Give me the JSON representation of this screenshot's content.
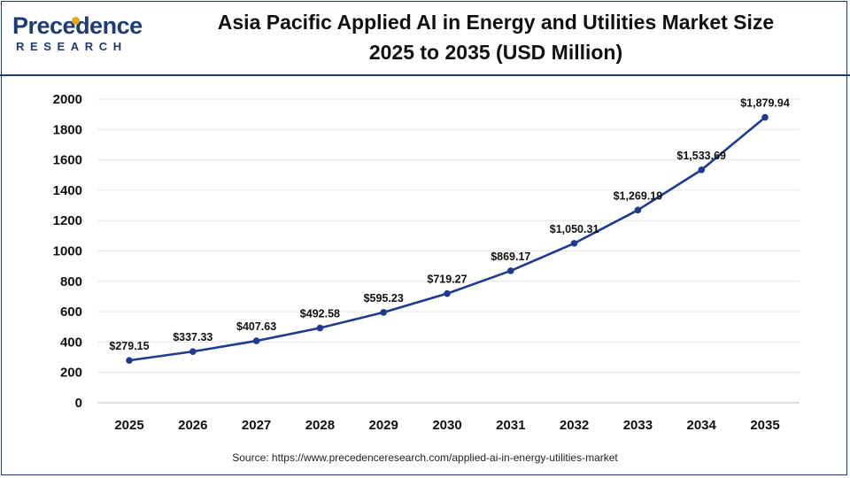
{
  "logo": {
    "word": "Precedence",
    "sub": "RESEARCH"
  },
  "chart_data": {
    "type": "line",
    "title": "Asia Pacific Applied AI in Energy and Utilities Market Size",
    "subtitle": "2025 to 2035 (USD Million)",
    "xlabel": "",
    "ylabel": "",
    "x": [
      "2025",
      "2026",
      "2027",
      "2028",
      "2029",
      "2030",
      "2031",
      "2032",
      "2033",
      "2034",
      "2035"
    ],
    "series": [
      {
        "values": [
          279.15,
          337.33,
          407.63,
          492.58,
          595.23,
          719.27,
          869.17,
          1050.31,
          1269.19,
          1533.69,
          1879.94
        ],
        "labels": [
          "$279.15",
          "$337.33",
          "$407.63",
          "$492.58",
          "$595.23",
          "$719.27",
          "$869.17",
          "$1,050.31",
          "$1,269.19",
          "$1,533.69",
          "$1,879.94"
        ],
        "color": "#1f3b8f"
      }
    ],
    "yticks": [
      "0",
      "200",
      "400",
      "600",
      "800",
      "1000",
      "1200",
      "1400",
      "1600",
      "1800",
      "2000"
    ],
    "ylim": [
      0,
      2000
    ],
    "grid": true,
    "legend": "none"
  },
  "source": "Source: https://www.precedenceresearch.com/applied-ai-in-energy-utilities-market",
  "colors": {
    "brand": "#1f3b73",
    "accent": "#e8a317",
    "line": "#1f3b8f",
    "grid": "#e6e6e6"
  }
}
